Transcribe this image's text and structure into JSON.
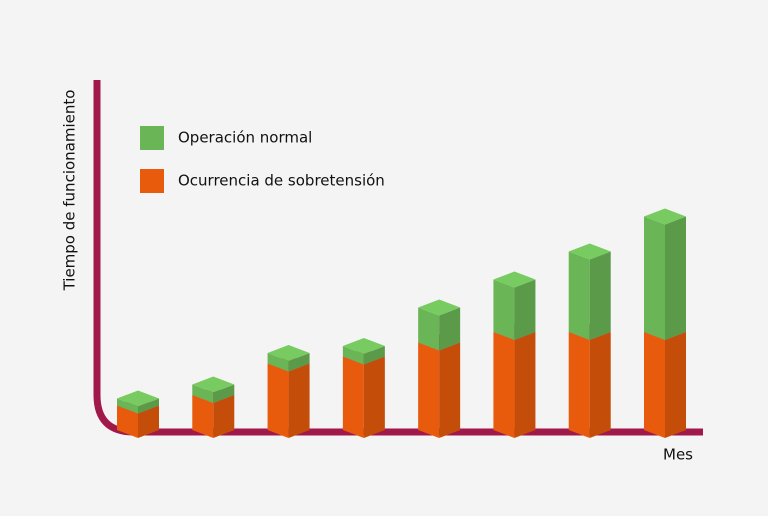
{
  "chart_data": {
    "type": "bar",
    "stacked": true,
    "three_d": true,
    "y_label": "Tiempo de funcionamiento",
    "x_label": "Mes",
    "categories": [
      null,
      null,
      null,
      null,
      null,
      null,
      null,
      null
    ],
    "series": [
      {
        "name": "Operación normal",
        "color": "#6ab556",
        "values": [
          2,
          3,
          3,
          3,
          10,
          15,
          23,
          33
        ]
      },
      {
        "name": "Ocurrencia de sobretensión",
        "color": "#e85a0c",
        "values": [
          7,
          10,
          19,
          21,
          25,
          28,
          28,
          28
        ]
      }
    ],
    "ylim": [
      0,
      100
    ],
    "axis_color": "#a0194a",
    "legend": "upper left"
  }
}
